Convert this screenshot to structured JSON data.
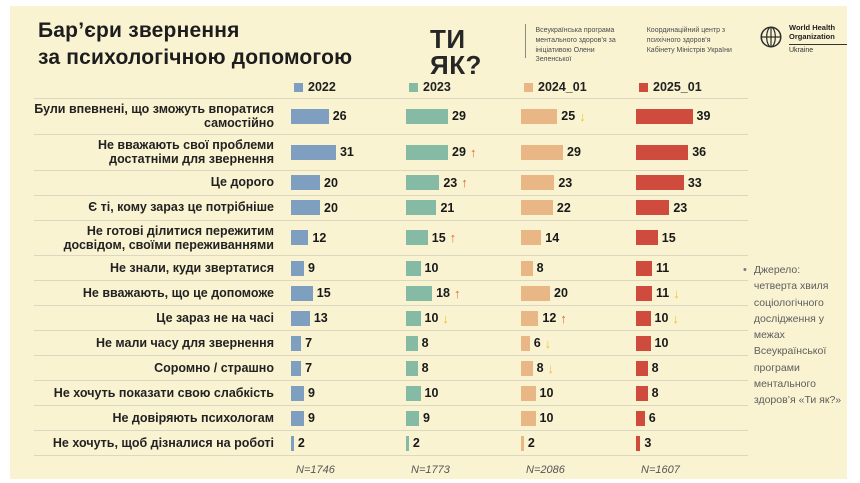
{
  "title": {
    "lines": [
      "Бар’єри звернення",
      "за психологічною допомогою"
    ]
  },
  "header": {
    "tyak_logo": "ТИ ЯК?",
    "tyak_program": "Всеукраїнська програма ментального здоров’я за ініціативою Олени Зеленської",
    "coordination_center": "Координаційний центр з психічного здоров’я Кабінету Міністрів України",
    "who": {
      "name": "World Health Organization",
      "country": "Ukraine"
    }
  },
  "source_note": {
    "bullet": "•",
    "text": "Джерело: четверта хвиля соціологічного дослідження у межах Всеукраїнської програми ментального здоров’я «Ти як?»"
  },
  "chart_data": {
    "type": "bar",
    "orientation": "horizontal",
    "unit": "percent",
    "xlim": [
      0,
      45
    ],
    "grid": false,
    "legend_position": "top",
    "background_color": "#f9f3d2",
    "series_names": [
      "2022",
      "2023",
      "2024_01",
      "2025_01"
    ],
    "series_colors": [
      "#7e9fc0",
      "#85bba5",
      "#e9b785",
      "#cf4b3d"
    ],
    "trend_colors": {
      "up": "#e06a35",
      "down": "#ecc428"
    },
    "sample_sizes": [
      "N=1746",
      "N=1773",
      "N=2086",
      "N=1607"
    ],
    "categories": [
      "Були впевнені, що зможуть впоратися самостійно",
      "Не вважають свої проблеми достатніми для звернення",
      "Це дорого",
      "Є ті, кому зараз це потрібніше",
      "Не готові ділитися пережитим досвідом, своїми переживаннями",
      "Не знали, куди звертатися",
      "Не вважають, що це допоможе",
      "Це зараз не на часі",
      "Не мали часу для звернення",
      "Соромно / страшно",
      "Не хочуть показати свою слабкість",
      "Не довіряють психологам",
      "Не хочуть, щоб дізналися на роботі"
    ],
    "rows": [
      {
        "label": "Були впевнені, що зможуть впоратися самостійно",
        "values": [
          26,
          29,
          25,
          39
        ],
        "arrows": [
          "",
          "",
          "down",
          ""
        ]
      },
      {
        "label": "Не вважають свої проблеми достатніми для звернення",
        "values": [
          31,
          29,
          29,
          36
        ],
        "arrows": [
          "",
          "up",
          "",
          ""
        ]
      },
      {
        "label": "Це дорого",
        "values": [
          20,
          23,
          23,
          33
        ],
        "arrows": [
          "",
          "up",
          "",
          ""
        ]
      },
      {
        "label": "Є ті, кому зараз це потрібніше",
        "values": [
          20,
          21,
          22,
          23
        ],
        "arrows": [
          "",
          "",
          "",
          ""
        ]
      },
      {
        "label": "Не готові ділитися пережитим досвідом, своїми переживаннями",
        "values": [
          12,
          15,
          14,
          15
        ],
        "arrows": [
          "",
          "up",
          "",
          ""
        ]
      },
      {
        "label": "Не знали, куди звертатися",
        "values": [
          9,
          10,
          8,
          11
        ],
        "arrows": [
          "",
          "",
          "",
          ""
        ]
      },
      {
        "label": "Не вважають, що це допоможе",
        "values": [
          15,
          18,
          20,
          11
        ],
        "arrows": [
          "",
          "up",
          "",
          "down"
        ]
      },
      {
        "label": "Це зараз не на часі",
        "values": [
          13,
          10,
          12,
          10
        ],
        "arrows": [
          "",
          "down",
          "up",
          "down"
        ]
      },
      {
        "label": "Не мали часу для звернення",
        "values": [
          7,
          8,
          6,
          10
        ],
        "arrows": [
          "",
          "",
          "down",
          ""
        ]
      },
      {
        "label": "Соромно / страшно",
        "values": [
          7,
          8,
          8,
          8
        ],
        "arrows": [
          "",
          "",
          "down",
          ""
        ]
      },
      {
        "label": "Не хочуть показати свою слабкість",
        "values": [
          9,
          10,
          10,
          8
        ],
        "arrows": [
          "",
          "",
          "",
          ""
        ]
      },
      {
        "label": "Не довіряють психологам",
        "values": [
          9,
          9,
          10,
          6
        ],
        "arrows": [
          "",
          "",
          "",
          ""
        ]
      },
      {
        "label": "Не хочуть, щоб дізналися на роботі",
        "values": [
          2,
          2,
          2,
          3
        ],
        "arrows": [
          "",
          "",
          "",
          ""
        ]
      }
    ]
  }
}
